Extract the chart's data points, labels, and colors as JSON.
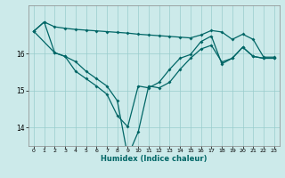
{
  "title": "",
  "xlabel": "Humidex (Indice chaleur)",
  "bg_color": "#cceaea",
  "grid_color": "#99cccc",
  "line_color": "#006666",
  "xlim": [
    -0.5,
    23.5
  ],
  "ylim": [
    13.5,
    17.3
  ],
  "yticks": [
    14,
    15,
    16
  ],
  "xticks": [
    0,
    1,
    2,
    3,
    4,
    5,
    6,
    7,
    8,
    9,
    10,
    11,
    12,
    13,
    14,
    15,
    16,
    17,
    18,
    19,
    20,
    21,
    22,
    23
  ],
  "series1_x": [
    0,
    1,
    2,
    3,
    4,
    5,
    6,
    7,
    8,
    9,
    10,
    11,
    12,
    13,
    14,
    15,
    16,
    17,
    18,
    19,
    20,
    21,
    22,
    23
  ],
  "series1_y": [
    16.6,
    16.85,
    16.72,
    16.68,
    16.65,
    16.63,
    16.61,
    16.59,
    16.57,
    16.55,
    16.52,
    16.5,
    16.48,
    16.46,
    16.44,
    16.42,
    16.5,
    16.62,
    16.58,
    16.38,
    16.52,
    16.38,
    15.9,
    15.9
  ],
  "series2_x": [
    0,
    1,
    2,
    3,
    4,
    5,
    6,
    7,
    8,
    9,
    10,
    11,
    12,
    13,
    14,
    15,
    16,
    17,
    18,
    19,
    20,
    21,
    22,
    23
  ],
  "series2_y": [
    16.6,
    16.85,
    16.02,
    15.92,
    15.78,
    15.52,
    15.32,
    15.12,
    14.72,
    13.22,
    13.88,
    15.12,
    15.07,
    15.22,
    15.57,
    15.87,
    16.12,
    16.22,
    15.77,
    15.87,
    16.17,
    15.92,
    15.87,
    15.87
  ],
  "series3_x": [
    0,
    2,
    3,
    4,
    5,
    6,
    7,
    8,
    9,
    10,
    11,
    12,
    13,
    14,
    15,
    16,
    17,
    18,
    19,
    20,
    21,
    22,
    23
  ],
  "series3_y": [
    16.6,
    16.02,
    15.92,
    15.52,
    15.32,
    15.12,
    14.9,
    14.32,
    14.02,
    15.12,
    15.07,
    15.22,
    15.57,
    15.87,
    15.97,
    16.32,
    16.47,
    15.72,
    15.87,
    16.17,
    15.92,
    15.87,
    15.87
  ]
}
